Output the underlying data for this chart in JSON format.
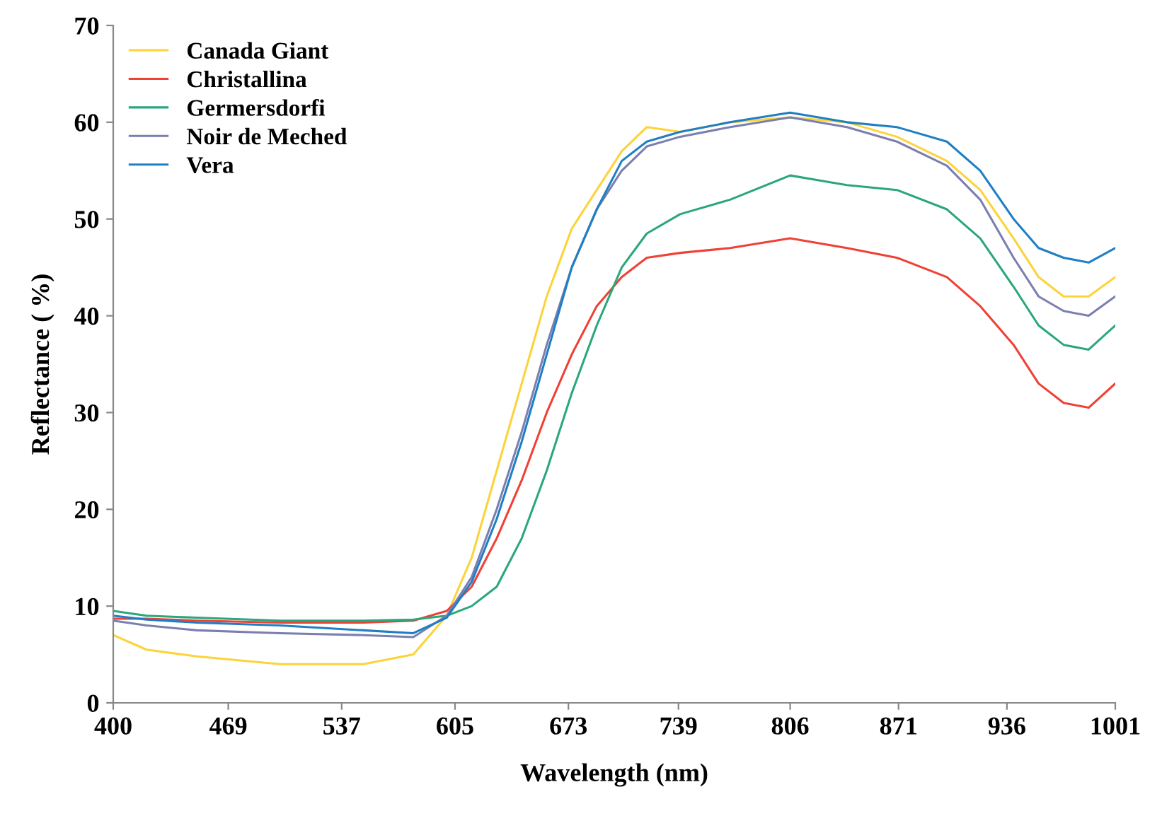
{
  "chart_data": {
    "type": "line",
    "xlabel": "Wavelength (nm)",
    "ylabel": "Reflectance ( %)",
    "xlim": [
      400,
      1001
    ],
    "ylim": [
      0,
      70
    ],
    "xticks": [
      400,
      469,
      537,
      605,
      673,
      739,
      806,
      871,
      936,
      1001
    ],
    "yticks": [
      0,
      10,
      20,
      30,
      40,
      50,
      60,
      70
    ],
    "grid": false,
    "legend": "top left",
    "marker": "none",
    "line_style": "solid",
    "x": [
      400,
      420,
      450,
      500,
      550,
      580,
      600,
      615,
      630,
      645,
      660,
      675,
      690,
      705,
      720,
      740,
      770,
      806,
      840,
      870,
      900,
      920,
      940,
      955,
      970,
      985,
      1001
    ],
    "series": [
      {
        "name": "Canada Giant",
        "color": "#fdd33a",
        "values": [
          7,
          5.5,
          4.8,
          4,
          4,
          5,
          9,
          15,
          24,
          33,
          42,
          49,
          53,
          57,
          59.5,
          59,
          60,
          60.5,
          60,
          58.5,
          56,
          53,
          48,
          44,
          42,
          42,
          44
        ]
      },
      {
        "name": "Christallina",
        "color": "#ef4136",
        "values": [
          8.7,
          8.7,
          8.5,
          8.3,
          8.3,
          8.5,
          9.5,
          12,
          17,
          23,
          30,
          36,
          41,
          44,
          46,
          46.5,
          47,
          48,
          47,
          46,
          44,
          41,
          37,
          33,
          31,
          30.5,
          33
        ]
      },
      {
        "name": "Germersdorfi",
        "color": "#2aa77b",
        "values": [
          9.5,
          9,
          8.8,
          8.5,
          8.5,
          8.6,
          9,
          10,
          12,
          17,
          24,
          32,
          39,
          45,
          48.5,
          50.5,
          52,
          54.5,
          53.5,
          53,
          51,
          48,
          43,
          39,
          37,
          36.5,
          39
        ]
      },
      {
        "name": "Noir de Meched",
        "color": "#7b7fb0",
        "values": [
          8.5,
          8,
          7.5,
          7.2,
          7,
          6.8,
          9,
          13,
          20,
          28,
          37,
          45,
          51,
          55,
          57.5,
          58.5,
          59.5,
          60.5,
          59.5,
          58,
          55.5,
          52,
          46,
          42,
          40.5,
          40,
          42
        ]
      },
      {
        "name": "Vera",
        "color": "#1f7fc4",
        "values": [
          9,
          8.6,
          8.3,
          8,
          7.5,
          7.2,
          8.8,
          12.5,
          19,
          27,
          36,
          45,
          51,
          56,
          58,
          59,
          60,
          61,
          60,
          59.5,
          58,
          55,
          50,
          47,
          46,
          45.5,
          47
        ]
      }
    ]
  }
}
